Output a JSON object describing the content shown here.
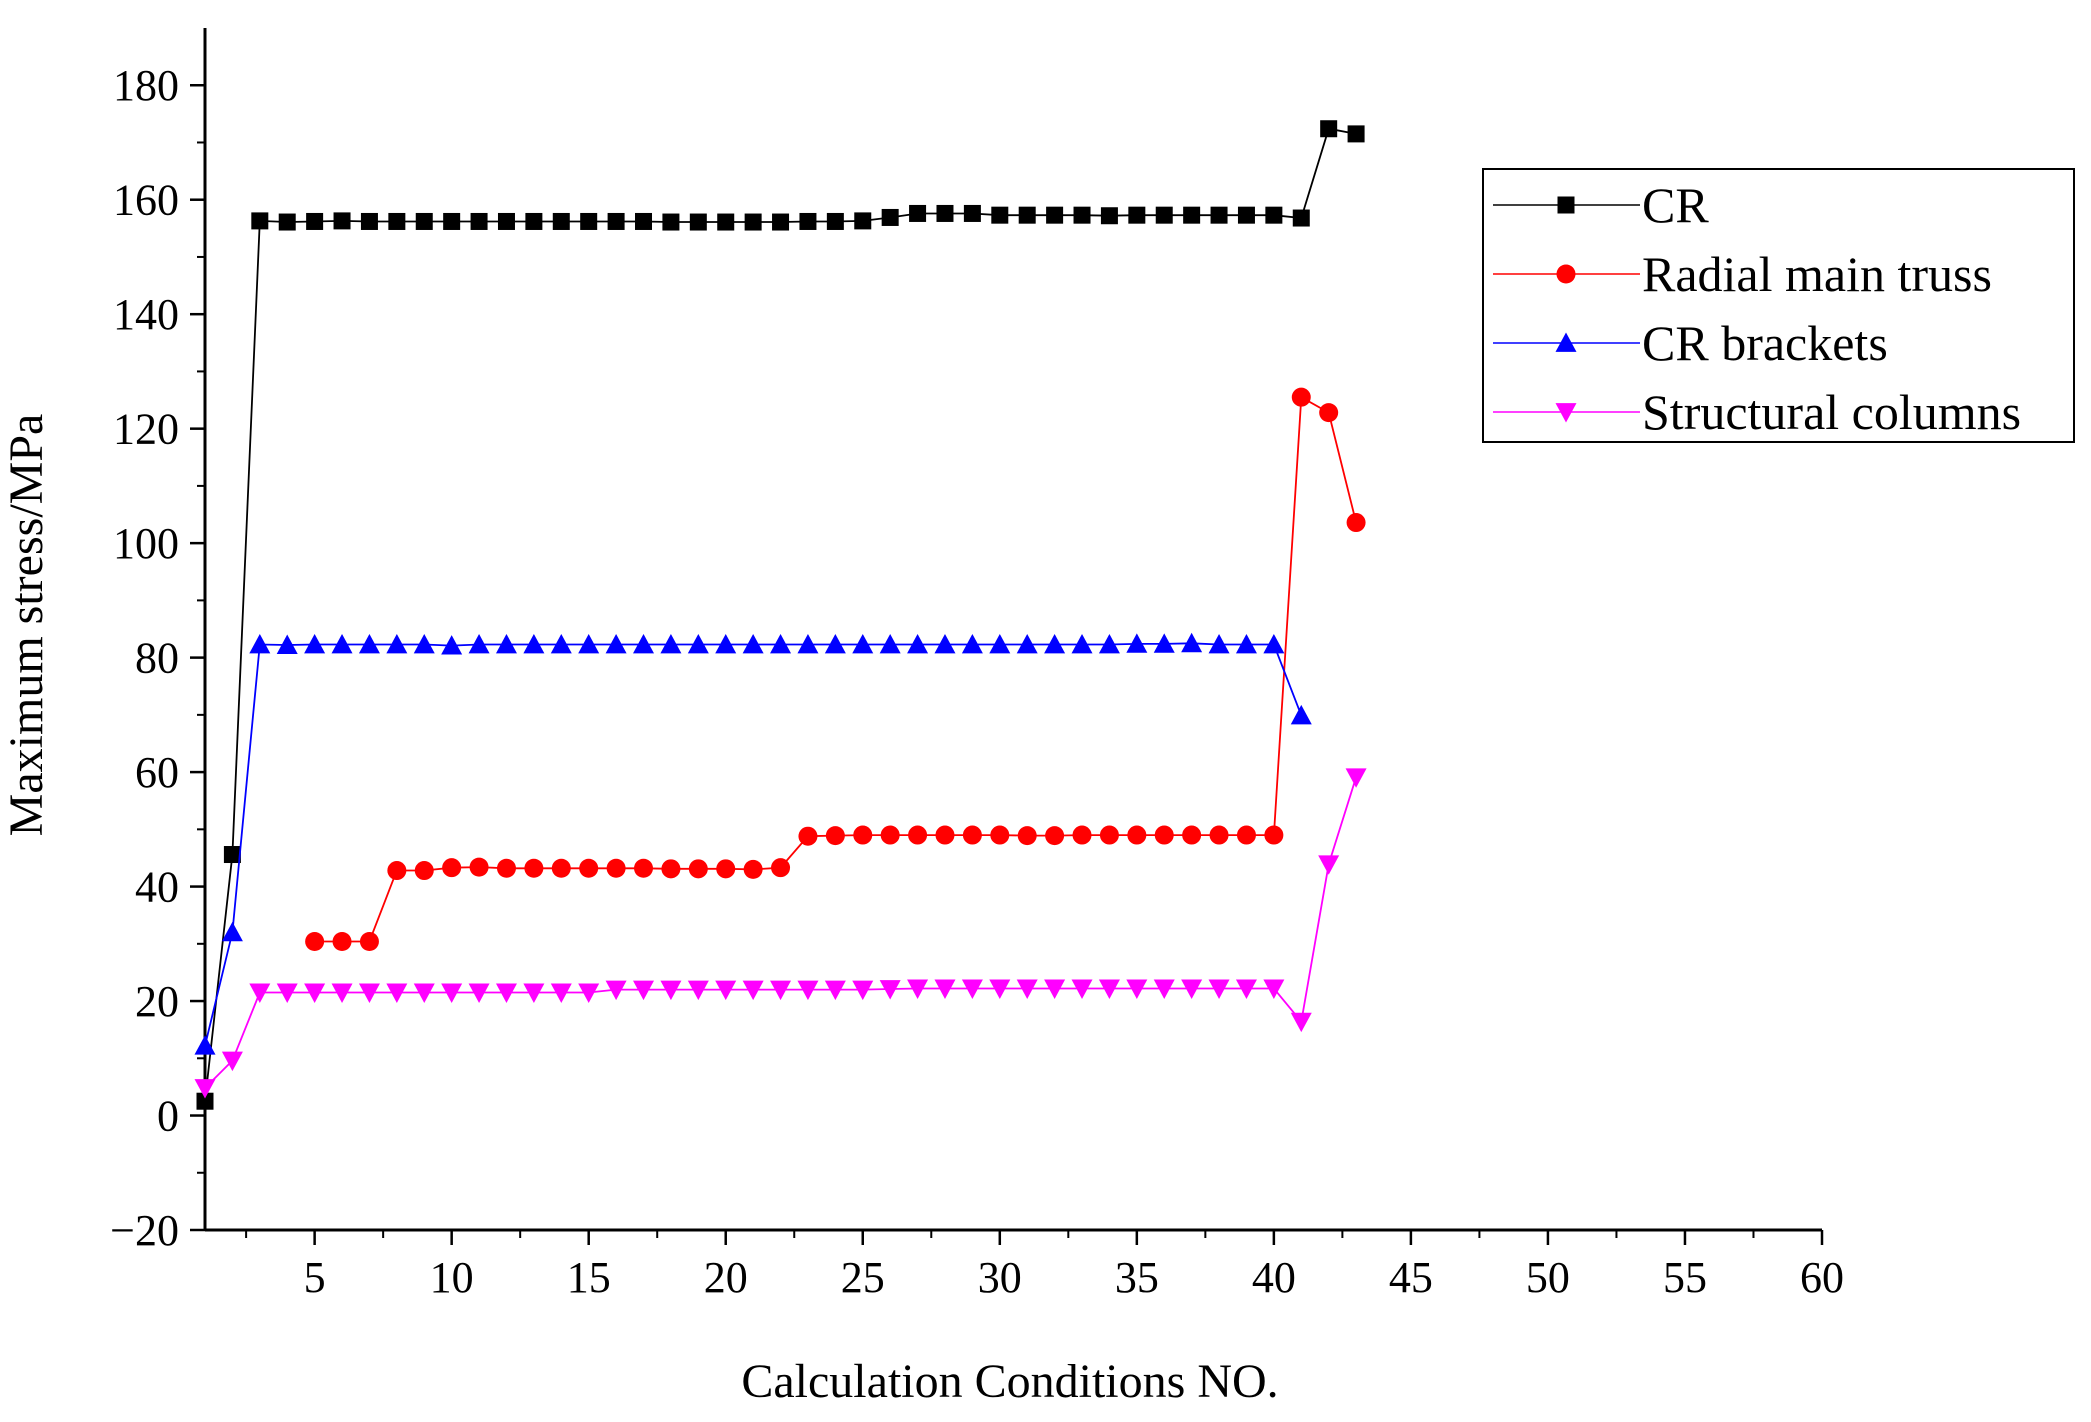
{
  "chart_data": {
    "type": "line",
    "title": "",
    "xlabel": "Calculation Conditions NO.",
    "ylabel": "Maximum stress/MPa",
    "xlim": [
      1,
      60
    ],
    "ylim": [
      -20,
      190
    ],
    "x_ticks": [
      5,
      10,
      15,
      20,
      25,
      30,
      35,
      40,
      45,
      50,
      55,
      60
    ],
    "y_ticks": [
      -20,
      0,
      20,
      40,
      60,
      80,
      100,
      120,
      140,
      160,
      180
    ],
    "x_tick_labels": [
      "5",
      "10",
      "15",
      "20",
      "25",
      "30",
      "35",
      "40",
      "45",
      "50",
      "55",
      "60"
    ],
    "y_tick_labels": [
      "−20",
      "0",
      "20",
      "40",
      "60",
      "80",
      "100",
      "120",
      "140",
      "160",
      "180"
    ],
    "grid": false,
    "legend_position": "top-right",
    "series": [
      {
        "name": "CR",
        "color": "#000000",
        "marker": "square",
        "x": [
          1,
          2,
          3,
          4,
          5,
          6,
          7,
          8,
          9,
          10,
          11,
          12,
          13,
          14,
          15,
          16,
          17,
          18,
          19,
          20,
          21,
          22,
          23,
          24,
          25,
          26,
          27,
          28,
          29,
          30,
          31,
          32,
          33,
          34,
          35,
          36,
          37,
          38,
          39,
          40,
          41,
          42,
          43
        ],
        "values": [
          2.5,
          45.6,
          156.3,
          156.1,
          156.2,
          156.3,
          156.2,
          156.2,
          156.2,
          156.2,
          156.2,
          156.2,
          156.2,
          156.2,
          156.2,
          156.2,
          156.2,
          156.1,
          156.1,
          156.1,
          156.1,
          156.1,
          156.2,
          156.2,
          156.3,
          156.9,
          157.6,
          157.6,
          157.6,
          157.3,
          157.3,
          157.3,
          157.3,
          157.2,
          157.3,
          157.3,
          157.3,
          157.3,
          157.3,
          157.3,
          156.8,
          172.4,
          171.5
        ]
      },
      {
        "name": "Radial main truss",
        "color": "#ff0000",
        "marker": "circle",
        "x": [
          5,
          6,
          7,
          8,
          9,
          10,
          11,
          12,
          13,
          14,
          15,
          16,
          17,
          18,
          19,
          20,
          21,
          22,
          23,
          24,
          25,
          26,
          27,
          28,
          29,
          30,
          31,
          32,
          33,
          34,
          35,
          36,
          37,
          38,
          39,
          40,
          41,
          42,
          43
        ],
        "values": [
          30.4,
          30.4,
          30.4,
          42.8,
          42.8,
          43.3,
          43.4,
          43.2,
          43.2,
          43.2,
          43.2,
          43.2,
          43.2,
          43.1,
          43.1,
          43.1,
          43.0,
          43.3,
          48.8,
          48.9,
          49.0,
          49.0,
          49.0,
          49.0,
          49.0,
          49.0,
          48.9,
          48.9,
          49.0,
          49.0,
          49.0,
          49.0,
          49.0,
          49.0,
          49.0,
          49.0,
          125.5,
          122.8,
          103.6
        ]
      },
      {
        "name": "CR brackets",
        "color": "#0000ff",
        "marker": "triangle-up",
        "x": [
          1,
          2,
          3,
          4,
          5,
          6,
          7,
          8,
          9,
          10,
          11,
          12,
          13,
          14,
          15,
          16,
          17,
          18,
          19,
          20,
          21,
          22,
          23,
          24,
          25,
          26,
          27,
          28,
          29,
          30,
          31,
          32,
          33,
          34,
          35,
          36,
          37,
          38,
          39,
          40,
          41
        ],
        "values": [
          12.2,
          32.0,
          82.3,
          82.2,
          82.3,
          82.3,
          82.3,
          82.3,
          82.3,
          82.1,
          82.3,
          82.3,
          82.3,
          82.3,
          82.3,
          82.3,
          82.3,
          82.3,
          82.3,
          82.3,
          82.3,
          82.3,
          82.3,
          82.3,
          82.3,
          82.3,
          82.3,
          82.3,
          82.3,
          82.3,
          82.3,
          82.3,
          82.3,
          82.3,
          82.4,
          82.4,
          82.5,
          82.3,
          82.3,
          82.3,
          69.9
        ]
      },
      {
        "name": "Structural columns",
        "color": "#ff00ff",
        "marker": "triangle-down",
        "x": [
          1,
          2,
          3,
          4,
          5,
          6,
          7,
          8,
          9,
          10,
          11,
          12,
          13,
          14,
          15,
          16,
          17,
          18,
          19,
          20,
          21,
          22,
          23,
          24,
          25,
          26,
          27,
          28,
          29,
          30,
          31,
          32,
          33,
          34,
          35,
          36,
          37,
          38,
          39,
          40,
          41,
          42,
          43
        ],
        "values": [
          4.8,
          9.6,
          21.5,
          21.5,
          21.5,
          21.5,
          21.5,
          21.5,
          21.5,
          21.5,
          21.5,
          21.5,
          21.5,
          21.5,
          21.5,
          22.0,
          22.0,
          22.0,
          22.0,
          22.0,
          22.0,
          22.0,
          22.0,
          22.0,
          22.0,
          22.1,
          22.2,
          22.2,
          22.2,
          22.2,
          22.2,
          22.2,
          22.2,
          22.2,
          22.2,
          22.2,
          22.2,
          22.2,
          22.2,
          22.2,
          16.4,
          43.9,
          59.1
        ]
      }
    ]
  }
}
